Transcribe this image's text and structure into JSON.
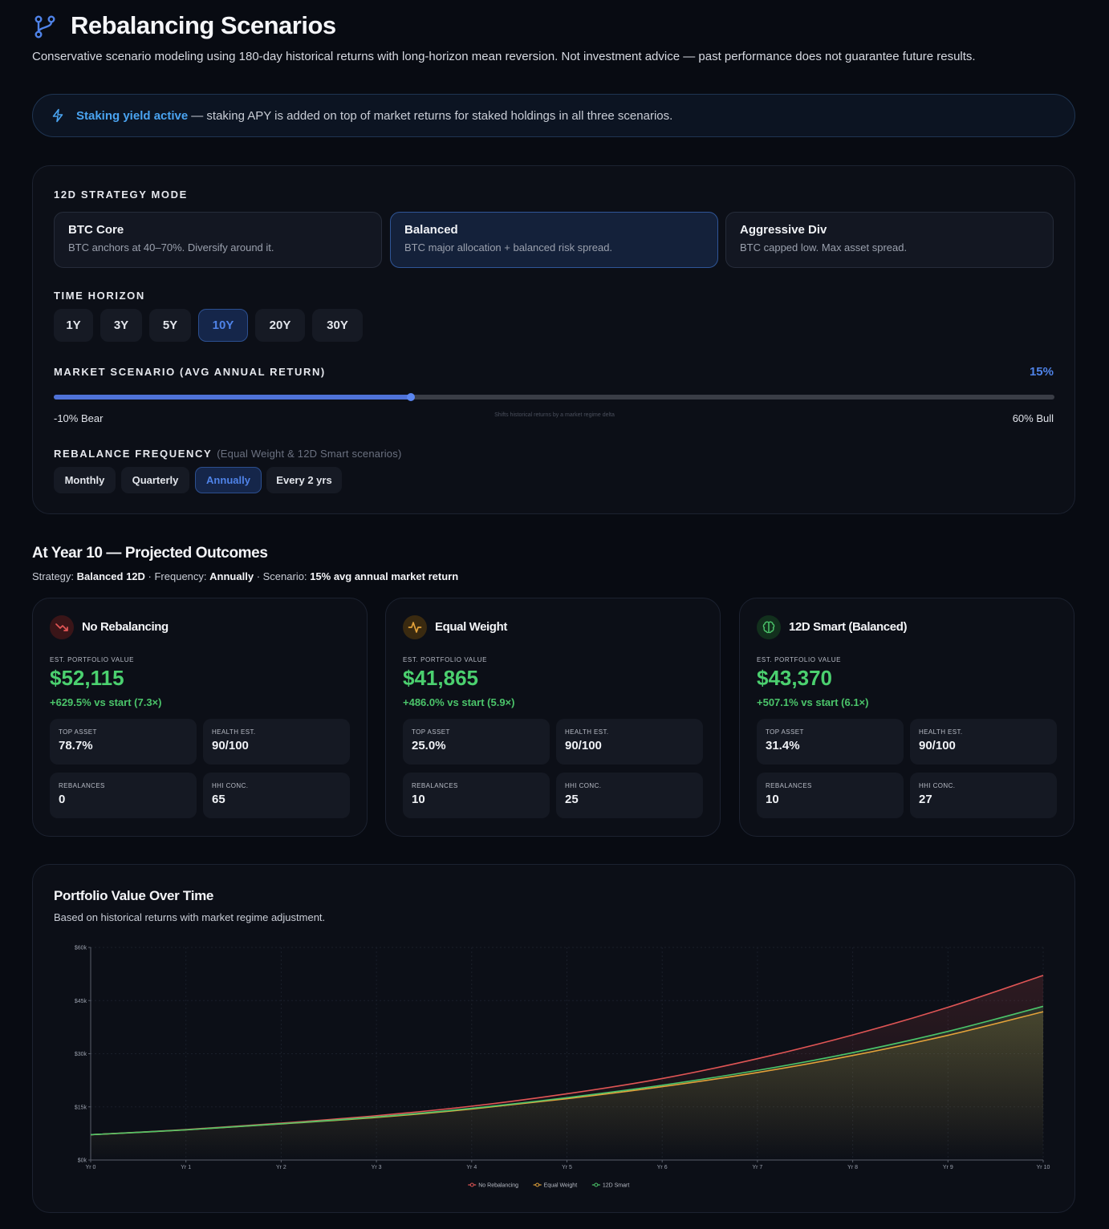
{
  "header": {
    "title": "Rebalancing Scenarios",
    "subtitle": "Conservative scenario modeling using 180-day historical returns with long-horizon mean reversion. Not investment advice — past performance does not guarantee future results."
  },
  "banner": {
    "strong": "Staking yield active",
    "text": "— staking APY is added on top of market returns for staked holdings in all three scenarios.",
    "icon": "bolt-icon"
  },
  "strategy": {
    "label": "12D STRATEGY MODE",
    "modes": [
      {
        "title": "BTC Core",
        "desc": "BTC anchors at 40–70%. Diversify around it.",
        "active": false
      },
      {
        "title": "Balanced",
        "desc": "BTC major allocation + balanced risk spread.",
        "active": true
      },
      {
        "title": "Aggressive Div",
        "desc": "BTC capped low. Max asset spread.",
        "active": false
      }
    ]
  },
  "horizon": {
    "label": "TIME HORIZON",
    "options": [
      "1Y",
      "3Y",
      "5Y",
      "10Y",
      "20Y",
      "30Y"
    ],
    "selected": "10Y"
  },
  "scenario": {
    "label": "MARKET SCENARIO (AVG ANNUAL RETURN)",
    "value_label": "15%",
    "value": 15,
    "min": -10,
    "max": 60,
    "min_label": "-10% Bear",
    "max_label": "60% Bull",
    "note": "Shifts historical returns by a market regime delta"
  },
  "frequency": {
    "label": "REBALANCE FREQUENCY",
    "note": "(Equal Weight & 12D Smart scenarios)",
    "options": [
      "Monthly",
      "Quarterly",
      "Annually",
      "Every 2 yrs"
    ],
    "selected": "Annually"
  },
  "outcomes": {
    "title": "At Year 10 — Projected Outcomes",
    "meta": {
      "strategy_label": "Strategy:",
      "strategy": "Balanced 12D",
      "frequency_label": "· Frequency:",
      "frequency": "Annually",
      "scenario_label": "· Scenario:",
      "scenario": "15% avg annual market return"
    },
    "est_label": "EST. PORTFOLIO VALUE",
    "cards": [
      {
        "title": "No Rebalancing",
        "icon": "trend-down-icon",
        "accent": "#e05555",
        "value": "$52,115",
        "change": "+629.5% vs start (7.3×)",
        "stats": [
          {
            "label": "TOP ASSET",
            "value": "78.7%"
          },
          {
            "label": "HEALTH EST.",
            "value": "90/100"
          },
          {
            "label": "REBALANCES",
            "value": "0"
          },
          {
            "label": "HHI CONC.",
            "value": "65"
          }
        ]
      },
      {
        "title": "Equal Weight",
        "icon": "activity-icon",
        "accent": "#e3a23a",
        "value": "$41,865",
        "change": "+486.0% vs start (5.9×)",
        "stats": [
          {
            "label": "TOP ASSET",
            "value": "25.0%"
          },
          {
            "label": "HEALTH EST.",
            "value": "90/100"
          },
          {
            "label": "REBALANCES",
            "value": "10"
          },
          {
            "label": "HHI CONC.",
            "value": "25"
          }
        ]
      },
      {
        "title": "12D Smart (Balanced)",
        "icon": "brain-icon",
        "accent": "#4bc46a",
        "value": "$43,370",
        "change": "+507.1% vs start (6.1×)",
        "stats": [
          {
            "label": "TOP ASSET",
            "value": "31.4%"
          },
          {
            "label": "HEALTH EST.",
            "value": "90/100"
          },
          {
            "label": "REBALANCES",
            "value": "10"
          },
          {
            "label": "HHI CONC.",
            "value": "27"
          }
        ]
      }
    ]
  },
  "chart": {
    "title": "Portfolio Value Over Time",
    "subtitle": "Based on historical returns with market regime adjustment."
  },
  "chart_data": {
    "type": "area",
    "categories": [
      "Yr 0",
      "Yr 1",
      "Yr 2",
      "Yr 3",
      "Yr 4",
      "Yr 5",
      "Yr 6",
      "Yr 7",
      "Yr 8",
      "Yr 9",
      "Yr 10"
    ],
    "y_ticks": [
      "$0k",
      "$15k",
      "$30k",
      "$45k",
      "$60k"
    ],
    "ylim": [
      0,
      60000
    ],
    "series": [
      {
        "name": "No Rebalancing",
        "color": "#e05555",
        "values": [
          7143,
          8600,
          10400,
          12500,
          15200,
          18700,
          23000,
          28600,
          35300,
          43100,
          52115
        ]
      },
      {
        "name": "Equal Weight",
        "color": "#e3a23a",
        "values": [
          7143,
          8500,
          10200,
          12000,
          14400,
          17300,
          20700,
          24700,
          29500,
          35200,
          41865
        ]
      },
      {
        "name": "12D Smart",
        "color": "#4bc46a",
        "values": [
          7143,
          8520,
          10250,
          12150,
          14600,
          17600,
          21100,
          25300,
          30300,
          36300,
          43370
        ]
      }
    ],
    "legend": "bottom-center",
    "grid": true
  }
}
